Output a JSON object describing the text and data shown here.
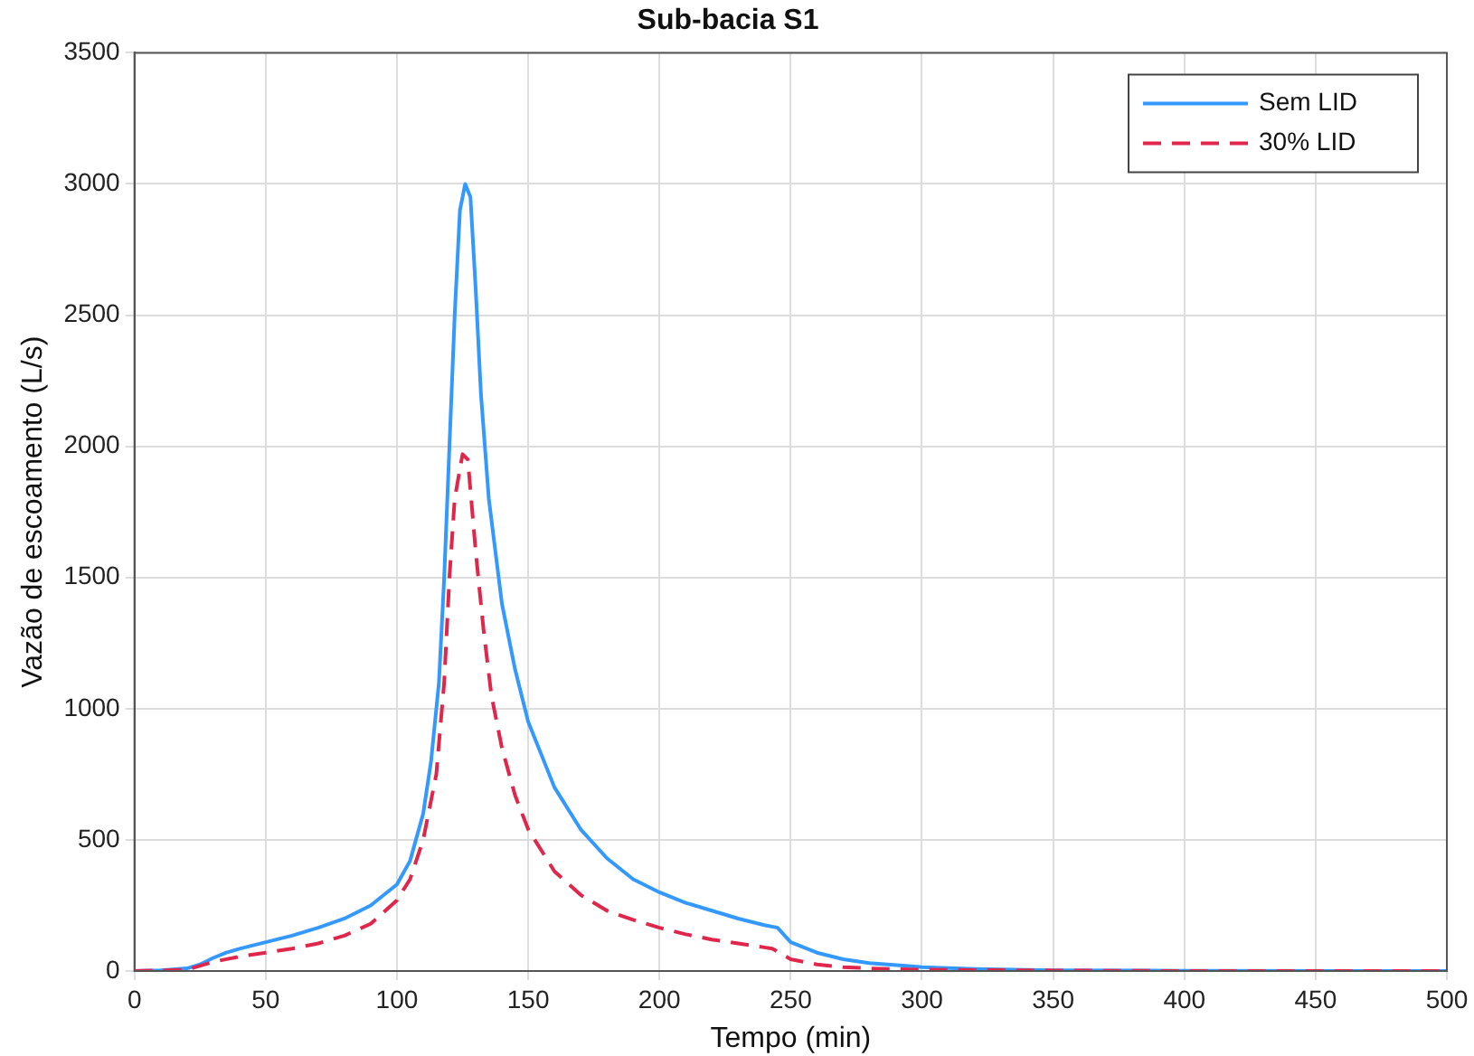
{
  "chart_data": {
    "type": "line",
    "title": "Sub-bacia S1",
    "xlabel": "Tempo (min)",
    "ylabel": "Vazão de escoamento (L/s)",
    "xlim": [
      0,
      500
    ],
    "xticks": [
      0,
      50,
      100,
      150,
      200,
      250,
      300,
      350,
      400,
      450,
      500
    ],
    "ylim": [
      0,
      3500
    ],
    "yticks": [
      0,
      500,
      1000,
      1500,
      2000,
      2500,
      3000,
      3500
    ],
    "grid": true,
    "legend": "top right",
    "marker": "none",
    "series": [
      {
        "name": "Sem LID",
        "color": "#3399ff",
        "line_style": "solid",
        "x": [
          0,
          10,
          20,
          25,
          30,
          35,
          40,
          50,
          60,
          70,
          80,
          90,
          100,
          105,
          110,
          113,
          116,
          118,
          120,
          122,
          124,
          126,
          128,
          130,
          132,
          135,
          140,
          145,
          150,
          160,
          170,
          180,
          190,
          200,
          210,
          220,
          230,
          240,
          245,
          250,
          260,
          270,
          280,
          300,
          320,
          350,
          400,
          500
        ],
        "values": [
          0,
          3,
          10,
          25,
          50,
          70,
          85,
          110,
          135,
          165,
          200,
          250,
          330,
          420,
          600,
          800,
          1100,
          1500,
          2000,
          2500,
          2900,
          3000,
          2950,
          2600,
          2200,
          1800,
          1400,
          1150,
          950,
          700,
          540,
          430,
          350,
          300,
          260,
          230,
          200,
          175,
          165,
          110,
          70,
          45,
          30,
          15,
          8,
          3,
          1,
          0
        ]
      },
      {
        "name": "30% LID",
        "color": "#e0264a",
        "line_style": "dashed",
        "x": [
          0,
          20,
          30,
          40,
          50,
          60,
          70,
          80,
          90,
          100,
          105,
          110,
          115,
          118,
          120,
          122,
          125,
          127,
          130,
          133,
          136,
          140,
          145,
          150,
          160,
          170,
          180,
          190,
          200,
          210,
          220,
          230,
          240,
          243,
          250,
          260,
          270,
          280,
          300,
          350,
          400,
          500
        ],
        "values": [
          0,
          5,
          35,
          55,
          70,
          85,
          105,
          135,
          180,
          270,
          350,
          500,
          750,
          1100,
          1500,
          1800,
          1970,
          1950,
          1600,
          1300,
          1050,
          850,
          670,
          540,
          380,
          290,
          230,
          195,
          165,
          140,
          120,
          105,
          90,
          85,
          45,
          25,
          15,
          10,
          5,
          2,
          0,
          0
        ]
      }
    ]
  }
}
